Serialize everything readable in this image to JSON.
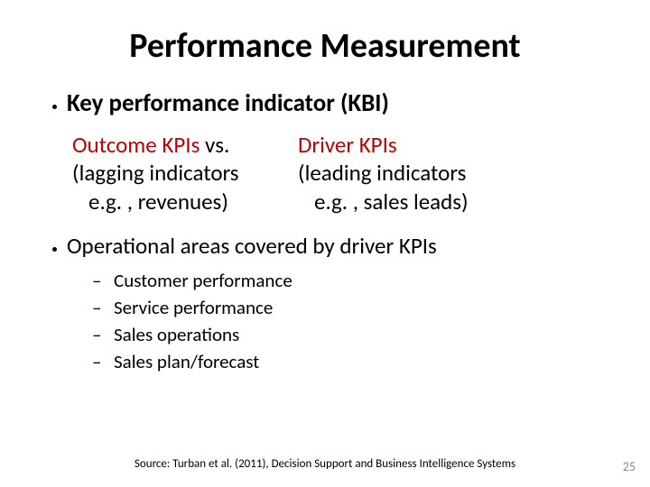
{
  "title": "Performance Measurement",
  "bullet1": {
    "heading": "Key performance indicator (KBI)",
    "left": {
      "term": "Outcome KPIs",
      "vs": "  vs.",
      "line2": "(lagging indicators",
      "line3": "e.g. , revenues)"
    },
    "right": {
      "term": "Driver KPIs",
      "line2": "(leading indicators",
      "line3": "e.g. , sales leads)"
    }
  },
  "bullet2": {
    "heading": "Operational areas covered by driver KPIs",
    "items": [
      "Customer performance",
      "Service performance",
      "Sales operations",
      "Sales plan/forecast"
    ]
  },
  "source": "Source:  Turban et al. (2011), Decision Support and Business Intelligence Systems",
  "pagenum": "25",
  "colors": {
    "accent_red": "#c00000",
    "pagenum_gray": "#8a8a8a",
    "background": "#ffffff",
    "text": "#000000"
  }
}
